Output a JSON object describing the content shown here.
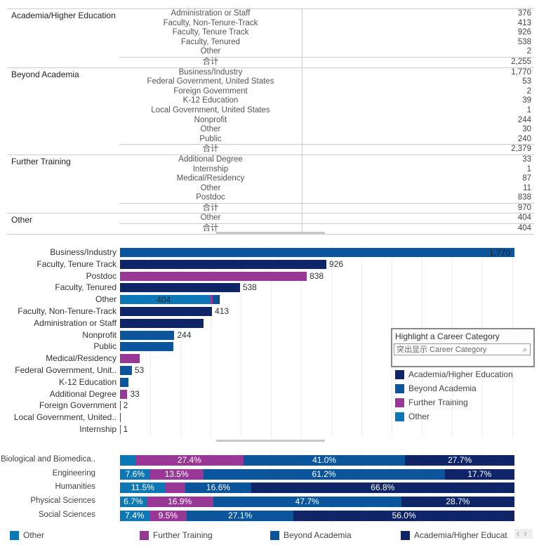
{
  "colors": {
    "Academia/Higher Education": "#0f2567",
    "Beyond Academia": "#0b559c",
    "Further Training": "#983795",
    "Other": "#0b78b5"
  },
  "table": {
    "total_label": "合计",
    "groups": [
      {
        "name": "Academia/Higher Education",
        "rows": [
          [
            "Administration or Staff",
            "376"
          ],
          [
            "Faculty, Non-Tenure-Track",
            "413"
          ],
          [
            "Faculty, Tenure Track",
            "926"
          ],
          [
            "Faculty, Tenured",
            "538"
          ],
          [
            "Other",
            "2"
          ]
        ],
        "total": "2,255"
      },
      {
        "name": "Beyond Academia",
        "rows": [
          [
            "Business/Industry",
            "1,770"
          ],
          [
            "Federal Government, United States",
            "53"
          ],
          [
            "Foreign Government",
            "2"
          ],
          [
            "K-12 Education",
            "39"
          ],
          [
            "Local Government, United States",
            "1"
          ],
          [
            "Nonprofit",
            "244"
          ],
          [
            "Other",
            "30"
          ],
          [
            "Public",
            "240"
          ]
        ],
        "total": "2,379"
      },
      {
        "name": "Further Training",
        "rows": [
          [
            "Additional Degree",
            "33"
          ],
          [
            "Internship",
            "1"
          ],
          [
            "Medical/Residency",
            "87"
          ],
          [
            "Other",
            "11"
          ],
          [
            "Postdoc",
            "838"
          ]
        ],
        "total": "970"
      },
      {
        "name": "Other",
        "rows": [
          [
            "Other",
            "404"
          ]
        ],
        "total": "404"
      }
    ]
  },
  "chart_data": [
    {
      "type": "bar",
      "title": "",
      "xlim": [
        0,
        1770
      ],
      "rows": [
        {
          "label": "Business/Industry",
          "segments": [
            {
              "cat": "Beyond Academia",
              "value": 1770
            }
          ],
          "data_label": "1,770",
          "label_inside": true
        },
        {
          "label": "Faculty, Tenure Track",
          "segments": [
            {
              "cat": "Academia/Higher Education",
              "value": 926
            }
          ],
          "data_label": "926"
        },
        {
          "label": "Postdoc",
          "segments": [
            {
              "cat": "Further Training",
              "value": 838
            }
          ],
          "data_label": "838"
        },
        {
          "label": "Faculty, Tenured",
          "segments": [
            {
              "cat": "Academia/Higher Education",
              "value": 538
            }
          ],
          "data_label": "538"
        },
        {
          "label": "Other",
          "segments": [
            {
              "cat": "Other",
              "value": 404
            },
            {
              "cat": "Further Training",
              "value": 11
            },
            {
              "cat": "Beyond Academia",
              "value": 30
            },
            {
              "cat": "Academia/Higher Education",
              "value": 2
            }
          ],
          "data_label": "404",
          "label_inside": true
        },
        {
          "label": "Faculty, Non-Tenure-Track",
          "segments": [
            {
              "cat": "Academia/Higher Education",
              "value": 413
            }
          ],
          "data_label": "413"
        },
        {
          "label": "Administration or Staff",
          "segments": [
            {
              "cat": "Academia/Higher Education",
              "value": 376
            }
          ],
          "data_label": ""
        },
        {
          "label": "Nonprofit",
          "segments": [
            {
              "cat": "Beyond Academia",
              "value": 244
            }
          ],
          "data_label": "244"
        },
        {
          "label": "Public",
          "segments": [
            {
              "cat": "Beyond Academia",
              "value": 240
            }
          ],
          "data_label": ""
        },
        {
          "label": "Medical/Residency",
          "segments": [
            {
              "cat": "Further Training",
              "value": 87
            }
          ],
          "data_label": ""
        },
        {
          "label": "Federal Government, Unit..",
          "segments": [
            {
              "cat": "Beyond Academia",
              "value": 53
            }
          ],
          "data_label": "53"
        },
        {
          "label": "K-12 Education",
          "segments": [
            {
              "cat": "Beyond Academia",
              "value": 39
            }
          ],
          "data_label": ""
        },
        {
          "label": "Additional Degree",
          "segments": [
            {
              "cat": "Further Training",
              "value": 33
            }
          ],
          "data_label": "33"
        },
        {
          "label": "Foreign Government",
          "segments": [
            {
              "cat": "Beyond Academia",
              "value": 2
            }
          ],
          "data_label": "2"
        },
        {
          "label": "Local Government, United..",
          "segments": [
            {
              "cat": "Beyond Academia",
              "value": 1
            }
          ],
          "data_label": ""
        },
        {
          "label": "Internship",
          "segments": [
            {
              "cat": "Further Training",
              "value": 1
            }
          ],
          "data_label": "1"
        }
      ],
      "legend": [
        "Academia/Higher Education",
        "Beyond Academia",
        "Further Training",
        "Other"
      ]
    },
    {
      "type": "bar",
      "stacked": "percent",
      "order": [
        "Other",
        "Further Training",
        "Beyond Academia",
        "Academia/Higher Education"
      ],
      "rows": [
        {
          "label": "Biological and Biomedica..",
          "values": [
            3.9,
            27.4,
            41.0,
            27.7
          ],
          "labels": [
            "",
            "27.4%",
            "41.0%",
            "27.7%"
          ]
        },
        {
          "label": "Engineering",
          "values": [
            7.6,
            13.5,
            61.2,
            17.7
          ],
          "labels": [
            "7.6%",
            "13.5%",
            "61.2%",
            "17.7%"
          ]
        },
        {
          "label": "Humanities",
          "values": [
            11.5,
            5.1,
            16.6,
            66.8
          ],
          "labels": [
            "11.5%",
            "",
            "16.6%",
            "66.8%"
          ]
        },
        {
          "label": "Physical Sciences",
          "values": [
            6.7,
            16.9,
            47.7,
            28.7
          ],
          "labels": [
            "6.7%",
            "16.9%",
            "47.7%",
            "28.7%"
          ]
        },
        {
          "label": "Social Sciences",
          "values": [
            7.4,
            9.5,
            27.1,
            56.0
          ],
          "labels": [
            "7.4%",
            "9.5%",
            "27.1%",
            "56.0%"
          ]
        }
      ],
      "legend": [
        "Other",
        "Further Training",
        "Beyond Academia",
        "Academia/Higher Educat"
      ]
    }
  ],
  "highlight": {
    "title": "Highlight a Career Category",
    "placeholder": "突出显示 Career Category"
  },
  "legend_scroll": {
    "prev": "‹",
    "next": "›"
  }
}
